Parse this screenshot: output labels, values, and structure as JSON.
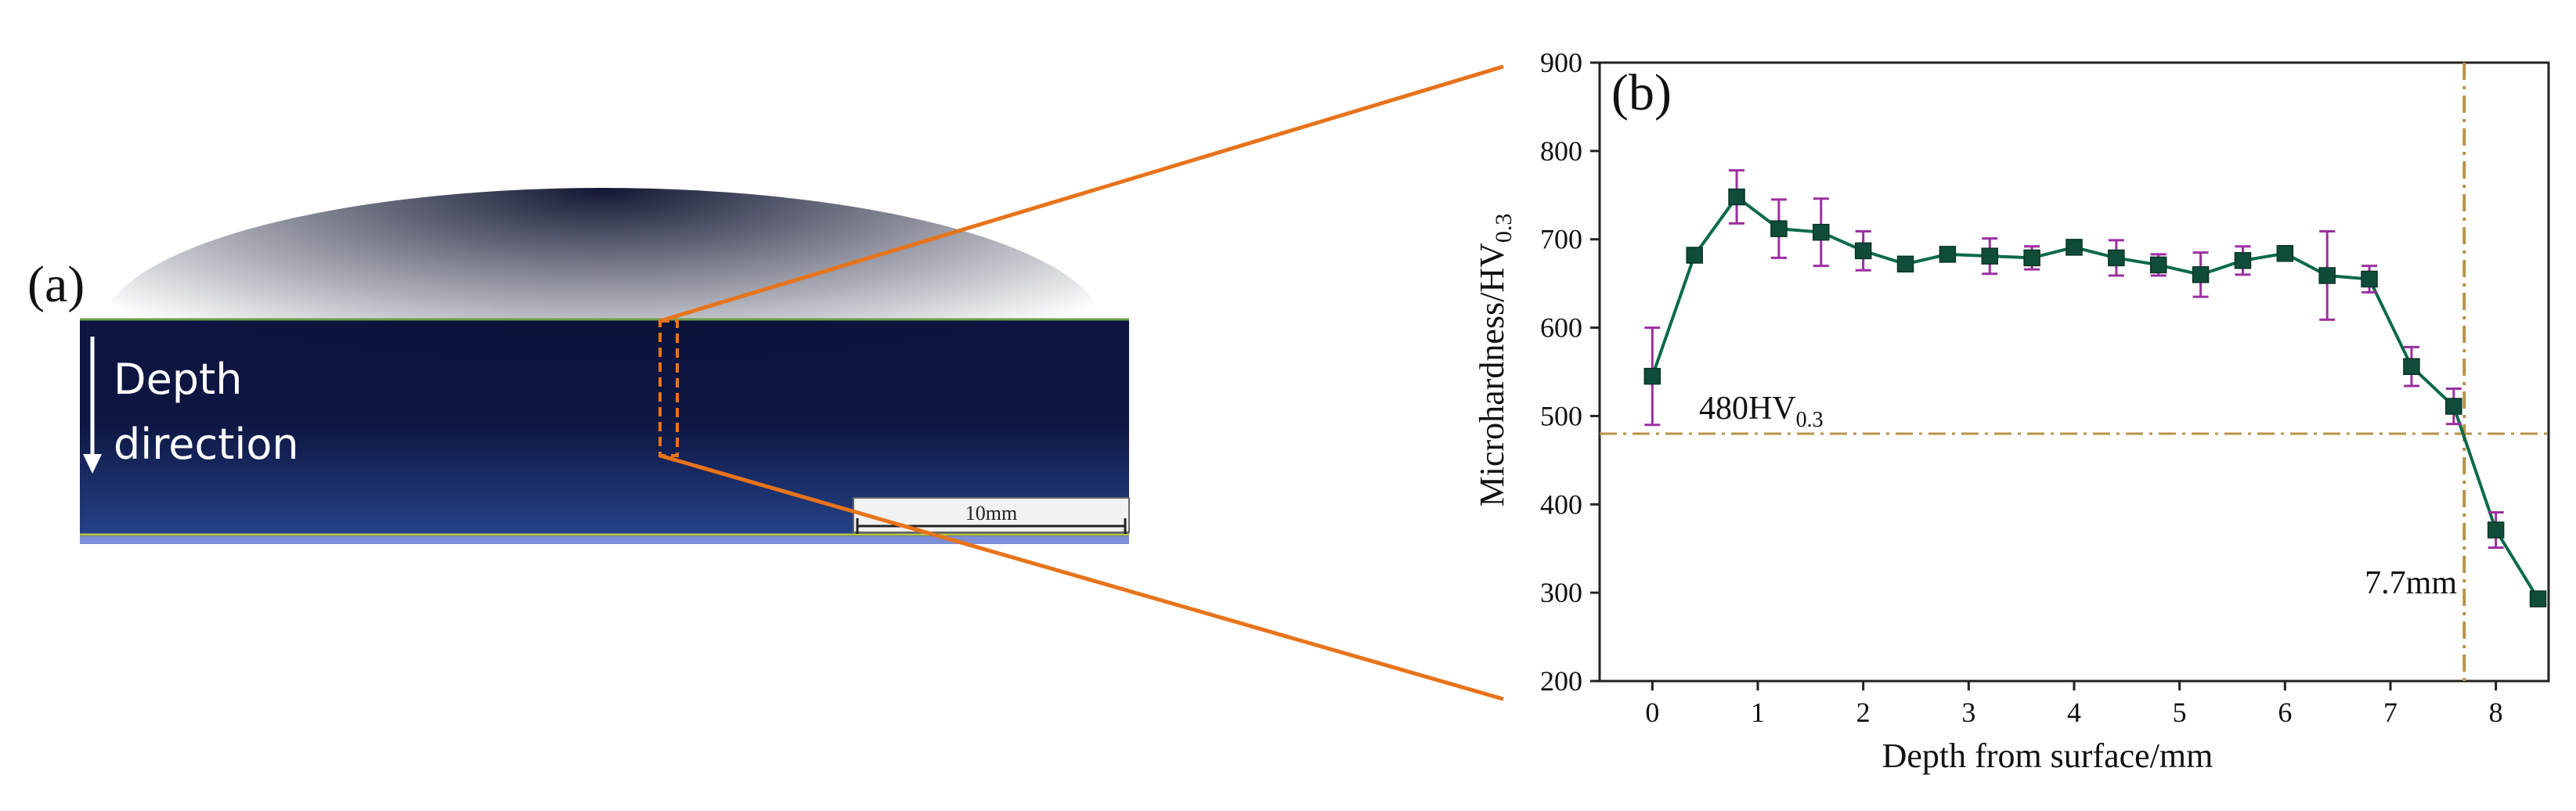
{
  "panel_a": {
    "label": "(a)",
    "annotation_line1": "Depth",
    "annotation_line2": "direction",
    "scale_bar_label": "10mm"
  },
  "colors": {
    "sample_top": "#0d1540",
    "sample_bottom": "#27468e",
    "zoom_lines": "#e8731a",
    "series_line": "#0a6a4a",
    "marker": "#0f4d3a",
    "error_bar": "#9b2fa0",
    "reference_line": "#b5944a"
  },
  "chart_data": {
    "type": "line",
    "panel_label": "(b)",
    "xlabel": "Depth from surface/mm",
    "ylabel_main": "Microhardness/HV",
    "ylabel_sub": "0.3",
    "xlim": [
      -0.5,
      8.5
    ],
    "ylim": [
      200,
      900
    ],
    "xticks": [
      0,
      1,
      2,
      3,
      4,
      5,
      6,
      7,
      8
    ],
    "yticks": [
      200,
      300,
      400,
      500,
      600,
      700,
      800,
      900
    ],
    "grid": false,
    "series": [
      {
        "x": [
          0,
          0.4,
          0.8,
          1.2,
          1.6,
          2.0,
          2.4,
          2.8,
          3.2,
          3.6,
          4.0,
          4.4,
          4.8,
          5.2,
          5.6,
          6.0,
          6.4,
          6.8,
          7.2,
          7.6,
          8.0,
          8.4
        ],
        "y": [
          545,
          682,
          748,
          712,
          708,
          687,
          672,
          683,
          681,
          679,
          691,
          679,
          671,
          660,
          676,
          684,
          659,
          655,
          556,
          511,
          371,
          293
        ],
        "err": [
          55,
          5,
          30,
          33,
          38,
          22,
          5,
          8,
          20,
          13,
          5,
          20,
          12,
          25,
          16,
          5,
          50,
          15,
          22,
          20,
          20,
          8
        ]
      }
    ],
    "hline": {
      "y": 480,
      "label_main": "480HV",
      "label_sub": "0.3"
    },
    "vline": {
      "x": 7.7,
      "label": "7.7mm"
    }
  }
}
